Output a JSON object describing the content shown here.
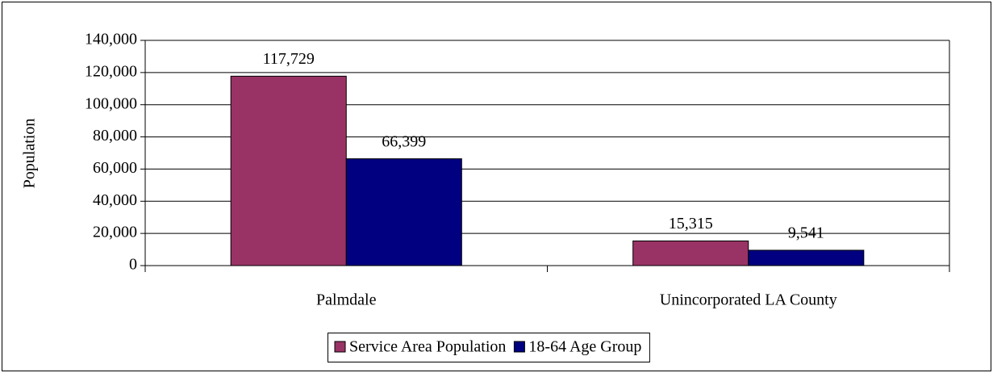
{
  "chart_data": {
    "type": "bar",
    "y_axis_label": "Population",
    "categories": [
      "Palmdale",
      "Unincorporated LA County"
    ],
    "series": [
      {
        "name": "Service Area Population",
        "color": "#993366",
        "values": [
          117729,
          15315
        ],
        "value_labels": [
          "117,729",
          "15,315"
        ]
      },
      {
        "name": "18-64 Age Group",
        "color": "#000080",
        "values": [
          66399,
          9541
        ],
        "value_labels": [
          "66,399",
          "9,541"
        ]
      }
    ],
    "ylim": [
      0,
      140000
    ],
    "yticks": [
      0,
      {
        "value": 20000,
        "label": "20,000"
      },
      {
        "value": 40000,
        "label": "40,000"
      },
      {
        "value": 60000,
        "label": "60,000"
      },
      {
        "value": 80000,
        "label": "80,000"
      },
      {
        "value": 100000,
        "label": "100,000"
      },
      {
        "value": 120000,
        "label": "120,000"
      },
      {
        "value": 140000,
        "label": "140,000"
      }
    ],
    "grid": true,
    "legend": "bottom"
  }
}
